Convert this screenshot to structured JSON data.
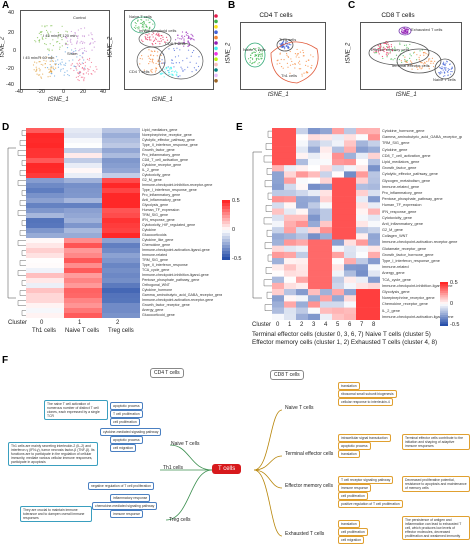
{
  "panels": {
    "A": {
      "label": "A",
      "left_title": "",
      "left_annotations": [
        "Control",
        "I 45 min/R 120 min",
        "I 45 min/R 60 min",
        "Sham"
      ],
      "right_annotations": [
        "Naive T cells",
        "Innate lymphoid cells",
        "CD8 T cells",
        "CD4 T cells"
      ],
      "xlabel": "tSNE_1",
      "ylabel": "tSNE_2",
      "xticks": [
        "-40",
        "-20",
        "0",
        "20",
        "40"
      ],
      "yticks": [
        "40",
        "20",
        "0",
        "-20",
        "-40"
      ]
    },
    "B": {
      "label": "B",
      "title": "CD4 T cells",
      "annotations": [
        "Naive T cells",
        "Treg cells",
        "Th1 cells"
      ],
      "xlabel": "tSNE_1",
      "ylabel": "tSNE_2"
    },
    "C": {
      "label": "C",
      "title": "CD8 T cells",
      "annotations": [
        "Exhausted T cells",
        "Effector memory cells",
        "Terminal effector cells",
        "Naive T cells"
      ],
      "xlabel": "tSNE_1",
      "ylabel": "tSNE_2"
    },
    "D": {
      "label": "D",
      "genes": [
        "Lipid_mediators_gene",
        "Norepinephrine_receptor_gene",
        "Cytolytic_effector_pathway_gene",
        "Type_II_interferon_response_gene",
        "Growth_factor_gene",
        "Pro_inflammatory_gene",
        "CD8_T_cell_activation_gene",
        "Cytokine_receptor_gene",
        "IL_2_gene",
        "Cytotoxicity_gene",
        "G2_M_gene",
        "Immune-checkpoint-inhibition-receptor-gene",
        "Type_I_interferon_response_gene",
        "Pro_inflammatory_gene",
        "Anti_inflammatory_gene",
        "Glycolysis_gene",
        "Human_TF_expression",
        "TRM_SIG_gene",
        "IFN_response_gene",
        "Cytotoxicity_HIF_regulated_gene",
        "Cytokine",
        "Glucocorticoids",
        "Cytokine_like_gene",
        "Chemokine_gene",
        "Immune-checkpoint-activation-ligand-gene",
        "Immune-related",
        "TRM_SIG_gene",
        "Type_II_interferon_response",
        "TCA_cycle_gene",
        "Immune-checkpoint-inhibition-ligand-gene",
        "Pentose_phosphate_pathway_gene",
        "Orthogonal_WNT",
        "Cytokine_hormone",
        "Gamma_aminobutyric_acid_GABA_receptor_gene",
        "Immune-checkpoint-activation-receptor-gene",
        "Growth_factor_receptor_gene",
        "Anergy_gene",
        "Glucocorticoid_gene"
      ],
      "cluster_label": "Cluster",
      "clusters": [
        "0",
        "1",
        "2"
      ],
      "cluster_names": [
        "Th1 cells",
        "Naive T cells",
        "Treg cells"
      ],
      "legend_ticks": [
        "0.5",
        "0",
        "-0.5"
      ]
    },
    "E": {
      "label": "E",
      "genes": [
        "Cytokine_hormone_gene",
        "Gamma_aminobutyric_acid_GABA_receptor_gene",
        "TRM_SIG_gene",
        "Cytokine_gene",
        "CD8_T_cell_activation_gene",
        "Lipid_mediators_gene",
        "Growth_factor_gene",
        "Cytolytic_effector_pathway_gene",
        "Glycogen_metabolism_gene",
        "Immune-related_gene",
        "Pro_inflammatory_gene",
        "Pentose_phosphate_pathway_gene",
        "Human_TF_expression",
        "IFN_response_gene",
        "Cytotoxicity_gene",
        "Anti_inflammatory_gene",
        "G2_M_gene",
        "Collagen_WNT",
        "Immune-checkpoint-activation-receptor-gene",
        "Glutamate_receptor_gene",
        "Growth_factor_hormone_gene",
        "Type_I_interferon_response_gene",
        "Immune-related",
        "Anergy_gene",
        "TCA_cycle_gene",
        "Immune-checkpoint-inhibition-ligand-gene",
        "Glycolysis_gene",
        "Norepinephrine_receptor_gene",
        "Chemokine_receptor_gene",
        "IL_2_gene",
        "Immune-checkpoint-activation-ligand-gene"
      ],
      "cluster_label": "Cluster",
      "clusters": [
        "0",
        "1",
        "2",
        "3",
        "4",
        "5",
        "6",
        "7",
        "8"
      ],
      "legend_ticks": [
        "0.5",
        "0",
        "-0.5"
      ],
      "caption": [
        "Terminal effector cells (cluster 0, 3, 6, 7) Naive T cells (cluster 5)",
        "Effector memory cells (cluster 1, 2) Exhausted T cells (cluster 4, 8)"
      ]
    },
    "F": {
      "label": "F",
      "center": "T cells",
      "cd4_title": "CD4 T cells",
      "cd8_title": "CD8 T cells",
      "cd4_branches": [
        "Naive T cells",
        "Th1 cells",
        "Treg cells"
      ],
      "cd8_branches": [
        "Naive T cells",
        "Terminal effector cells",
        "Effector memory cells",
        "Exhausted T cells"
      ],
      "cd4_naive_leaves": [
        "apoptotic process",
        "T cell proliferation",
        "cell proliferation"
      ],
      "cd4_th1_leaves": [
        "cytokine-mediated signaling pathway",
        "apoptotic process",
        "cell migration",
        "negative regulation of T cell proliferation"
      ],
      "cd4_treg_leaves": [
        "inflammatory response",
        "chemokine-mediated signaling pathway",
        "immune response"
      ],
      "cd8_naive_leaves": [
        "translation",
        "ribosomal small subunit biogenesis",
        "cellular response to interleukin-4"
      ],
      "cd8_terminal_leaves": [
        "intracellular signal transduction",
        "apoptotic process",
        "translation"
      ],
      "cd8_memory_leaves": [
        "T cell receptor signaling pathway",
        "immune response",
        "cell proliferation",
        "positive regulation of T cell proliferation"
      ],
      "cd8_exhausted_leaves": [
        "translation",
        "cell proliferation",
        "cell migration"
      ],
      "notes": {
        "cd4_naive": "The naive T cell activation of numerous number of distinct T cell clones, each expressed by a single TCR",
        "cd4_th1": "Th1 cells are mainly secreting interleukin-2 (IL-2) and interferon-γ (IFN-γ), tumor necrosis factor-β (TNF-β). Its functions are to participate in the regulation of cellular immunity, mediate various cellular immune responses, participate in apoptosis",
        "cd4_treg": "They are crucial to maintain immune tolerance and to dampen overall immune responses",
        "cd8_terminal": "Terminal effector cells contribute to the initiation and shaping of adaptive immune responses",
        "cd8_memory": "Decreased proliferative potential, resistance to apoptosis and maintenance of memory cells",
        "cd8_exhausted": "The persistence of antigen and inflammation can lead to exhausted T cell, which produces low levels of effector molecules, decreased proliferation and weakened immunity"
      }
    }
  },
  "colors": {
    "red": "#d7191c",
    "blue": "#2c5ea8",
    "white": "#ffffff"
  }
}
